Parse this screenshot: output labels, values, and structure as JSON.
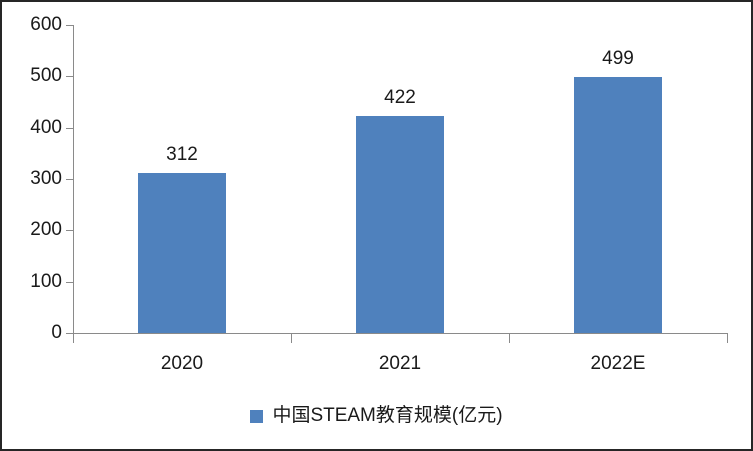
{
  "chart_data": {
    "type": "bar",
    "title": "",
    "categories": [
      "2020",
      "2021",
      "2022E"
    ],
    "values": [
      312,
      422,
      499
    ],
    "series": [
      {
        "name": "中国STEAM教育规模(亿元)",
        "values": [
          312,
          422,
          499
        ]
      }
    ],
    "legend": "中国STEAM教育规模(亿元)",
    "legend_position": "bottom",
    "legend_marker": "square-icon",
    "xlabel": "",
    "ylabel": "",
    "ylim": [
      0,
      600
    ],
    "y_tick_interval": 100,
    "y_ticks": [
      600,
      500,
      400,
      300,
      200,
      100,
      0
    ],
    "grid": "off",
    "bar_color": "#4f81bd",
    "axis_color": "#8a8a8a",
    "text_color": "#1a1a1a",
    "background_color": "#ffffff"
  }
}
